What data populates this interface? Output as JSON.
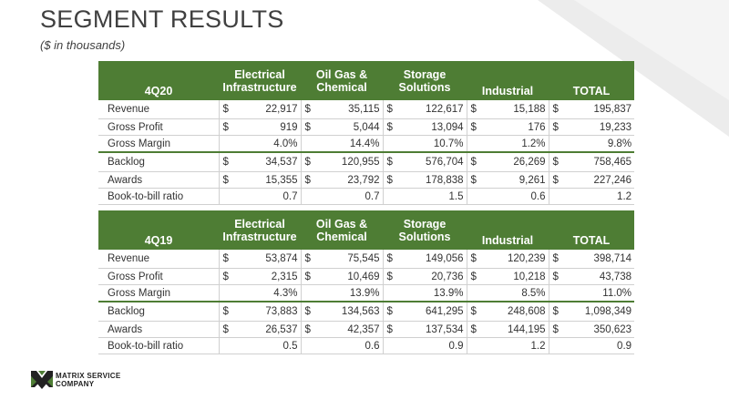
{
  "title": "SEGMENT RESULTS",
  "subtitle": "($ in thousands)",
  "columns": {
    "c1": [
      "Electrical",
      "Infrastructure"
    ],
    "c2": [
      "Oil Gas &",
      "Chemical"
    ],
    "c3": [
      "Storage",
      "Solutions"
    ],
    "c4": "Industrial",
    "c5": "TOTAL"
  },
  "tables": [
    {
      "period": "4Q20",
      "rows": [
        {
          "label": "Revenue",
          "cur": true,
          "values": [
            "22,917",
            "35,115",
            "122,617",
            "15,188",
            "195,837"
          ]
        },
        {
          "label": "Gross Profit",
          "cur": true,
          "values": [
            "919",
            "5,044",
            "13,094",
            "176",
            "19,233"
          ]
        },
        {
          "label": "Gross Margin",
          "cur": false,
          "values": [
            "4.0%",
            "14.4%",
            "10.7%",
            "1.2%",
            "9.8%"
          ]
        },
        {
          "label": "Backlog",
          "cur": true,
          "values": [
            "34,537",
            "120,955",
            "576,704",
            "26,269",
            "758,465"
          ]
        },
        {
          "label": "Awards",
          "cur": true,
          "values": [
            "15,355",
            "23,792",
            "178,838",
            "9,261",
            "227,246"
          ]
        },
        {
          "label": "Book-to-bill ratio",
          "cur": false,
          "values": [
            "0.7",
            "0.7",
            "1.5",
            "0.6",
            "1.2"
          ]
        }
      ]
    },
    {
      "period": "4Q19",
      "rows": [
        {
          "label": "Revenue",
          "cur": true,
          "values": [
            "53,874",
            "75,545",
            "149,056",
            "120,239",
            "398,714"
          ]
        },
        {
          "label": "Gross Profit",
          "cur": true,
          "values": [
            "2,315",
            "10,469",
            "20,736",
            "10,218",
            "43,738"
          ]
        },
        {
          "label": "Gross Margin",
          "cur": false,
          "values": [
            "4.3%",
            "13.9%",
            "13.9%",
            "8.5%",
            "11.0%"
          ]
        },
        {
          "label": "Backlog",
          "cur": true,
          "values": [
            "73,883",
            "134,563",
            "641,295",
            "248,608",
            "1,098,349"
          ]
        },
        {
          "label": "Awards",
          "cur": true,
          "values": [
            "26,537",
            "42,357",
            "137,534",
            "144,195",
            "350,623"
          ]
        },
        {
          "label": "Book-to-bill ratio",
          "cur": false,
          "values": [
            "0.5",
            "0.6",
            "0.9",
            "1.2",
            "0.9"
          ]
        }
      ]
    }
  ],
  "currency_symbol": "$",
  "logo": {
    "line1": "MATRIX SERVICE",
    "line2": "COMPANY"
  },
  "colors": {
    "header_green": "#4e7d34",
    "title_gray": "#404040"
  }
}
